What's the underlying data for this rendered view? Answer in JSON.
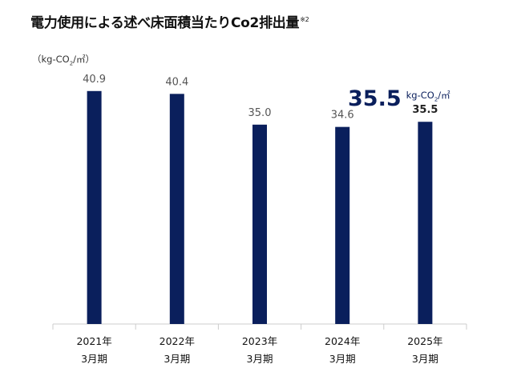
{
  "chart_data": {
    "type": "bar",
    "title": "電力使用による述べ床面積当たりCo2排出量",
    "title_note": "※2",
    "unit_label": "（kg-CO",
    "unit_sub": "2",
    "unit_suffix": "/㎡）",
    "highlight_value": "35.5",
    "highlight_unit": "kg-CO",
    "highlight_unit_sub": "2",
    "highlight_unit_suffix": "/㎡",
    "categories": [
      [
        "2021年",
        "3月期"
      ],
      [
        "2022年",
        "3月期"
      ],
      [
        "2023年",
        "3月期"
      ],
      [
        "2024年",
        "3月期"
      ],
      [
        "2025年",
        "3月期"
      ]
    ],
    "values": [
      40.9,
      40.4,
      35.0,
      34.6,
      35.5
    ],
    "value_labels": [
      "40.9",
      "40.4",
      "35.0",
      "34.6",
      "35.5"
    ],
    "highlight_index": 4,
    "ylim": [
      0,
      50
    ],
    "grid": false,
    "bar_color": "#0a1f5c",
    "axis_color": "#cccccc"
  }
}
